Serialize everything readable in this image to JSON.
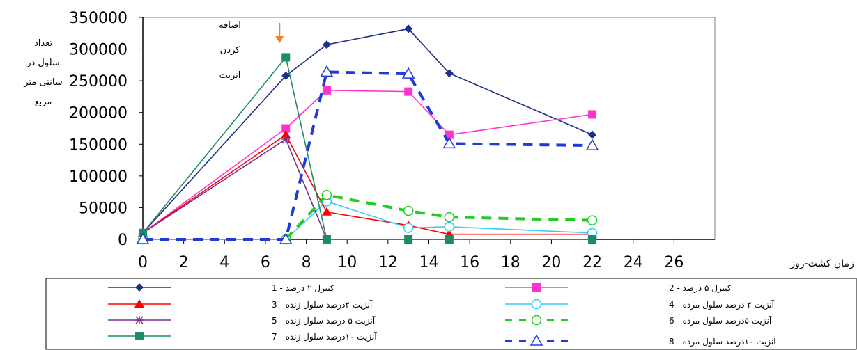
{
  "chart_data": {
    "type": "line",
    "ylabel_lines": [
      "تعداد",
      "سلول در",
      "سانتی متر",
      "مربع"
    ],
    "xlabel": "زمان کشت-روز",
    "annotation_lines": [
      "اضافه",
      "کردن",
      "آنزیت"
    ],
    "annotation_x": 7,
    "xlim": [
      0,
      28
    ],
    "ylim": [
      0,
      350000
    ],
    "xticks": [
      0,
      2,
      4,
      6,
      8,
      10,
      12,
      14,
      16,
      18,
      20,
      22,
      24,
      26
    ],
    "yticks": [
      0,
      50000,
      100000,
      150000,
      200000,
      250000,
      300000,
      350000
    ],
    "series": [
      {
        "name": "کنترل ۲ درصد - 1",
        "color": "#1f2e86",
        "marker": "diamond",
        "dash": false,
        "x": [
          0,
          7,
          9,
          13,
          15,
          22
        ],
        "y": [
          10000,
          258000,
          307000,
          332000,
          262000,
          165000
        ]
      },
      {
        "name": "کنترل ۵ درصد - 2",
        "color": "#ff33cc",
        "marker": "square",
        "dash": false,
        "x": [
          0,
          7,
          9,
          13,
          15,
          22
        ],
        "y": [
          10000,
          175000,
          235000,
          233000,
          165000,
          197000
        ]
      },
      {
        "name": "آنزیت ۲درصد سلول زنده - 3",
        "color": "#ff0000",
        "marker": "triangle",
        "dash": false,
        "x": [
          0,
          7,
          9,
          13,
          15,
          22
        ],
        "y": [
          10000,
          165000,
          43000,
          22000,
          8000,
          8000
        ]
      },
      {
        "name": "آنزیت ۲ درصد سلول مرده - 4",
        "color": "#33ccff",
        "marker": "circle-open",
        "dash": false,
        "x": [
          0,
          7,
          9,
          13,
          15,
          22
        ],
        "y": [
          0,
          0,
          60000,
          18000,
          20000,
          10000
        ]
      },
      {
        "name": "آنزیت ۵ درصد سلول زنده - 5",
        "color": "#7b2d8e",
        "marker": "star",
        "dash": false,
        "x": [
          0,
          7,
          9
        ],
        "y": [
          10000,
          158000,
          0
        ]
      },
      {
        "name": "آنزیت ۵درصد سلول مرده - 6",
        "color": "#22cc22",
        "marker": "circle-open",
        "dash": true,
        "x": [
          7,
          9,
          13,
          15,
          22
        ],
        "y": [
          0,
          70000,
          45000,
          35000,
          30000
        ]
      },
      {
        "name": "آنزیت ۱۰درصد سلول زنده - 7",
        "color": "#1a8a6a",
        "marker": "square",
        "dash": false,
        "x": [
          0,
          7,
          9,
          13,
          15,
          22
        ],
        "y": [
          10000,
          287000,
          0,
          0,
          0,
          0
        ]
      },
      {
        "name": "آنزیت ۱۰درصد سلول مرده - 8",
        "color": "#1f3ad6",
        "marker": "triangle-open",
        "dash": true,
        "x": [
          0,
          7,
          9,
          13,
          15,
          22
        ],
        "y": [
          0,
          0,
          264000,
          261000,
          151000,
          148000
        ]
      }
    ]
  }
}
